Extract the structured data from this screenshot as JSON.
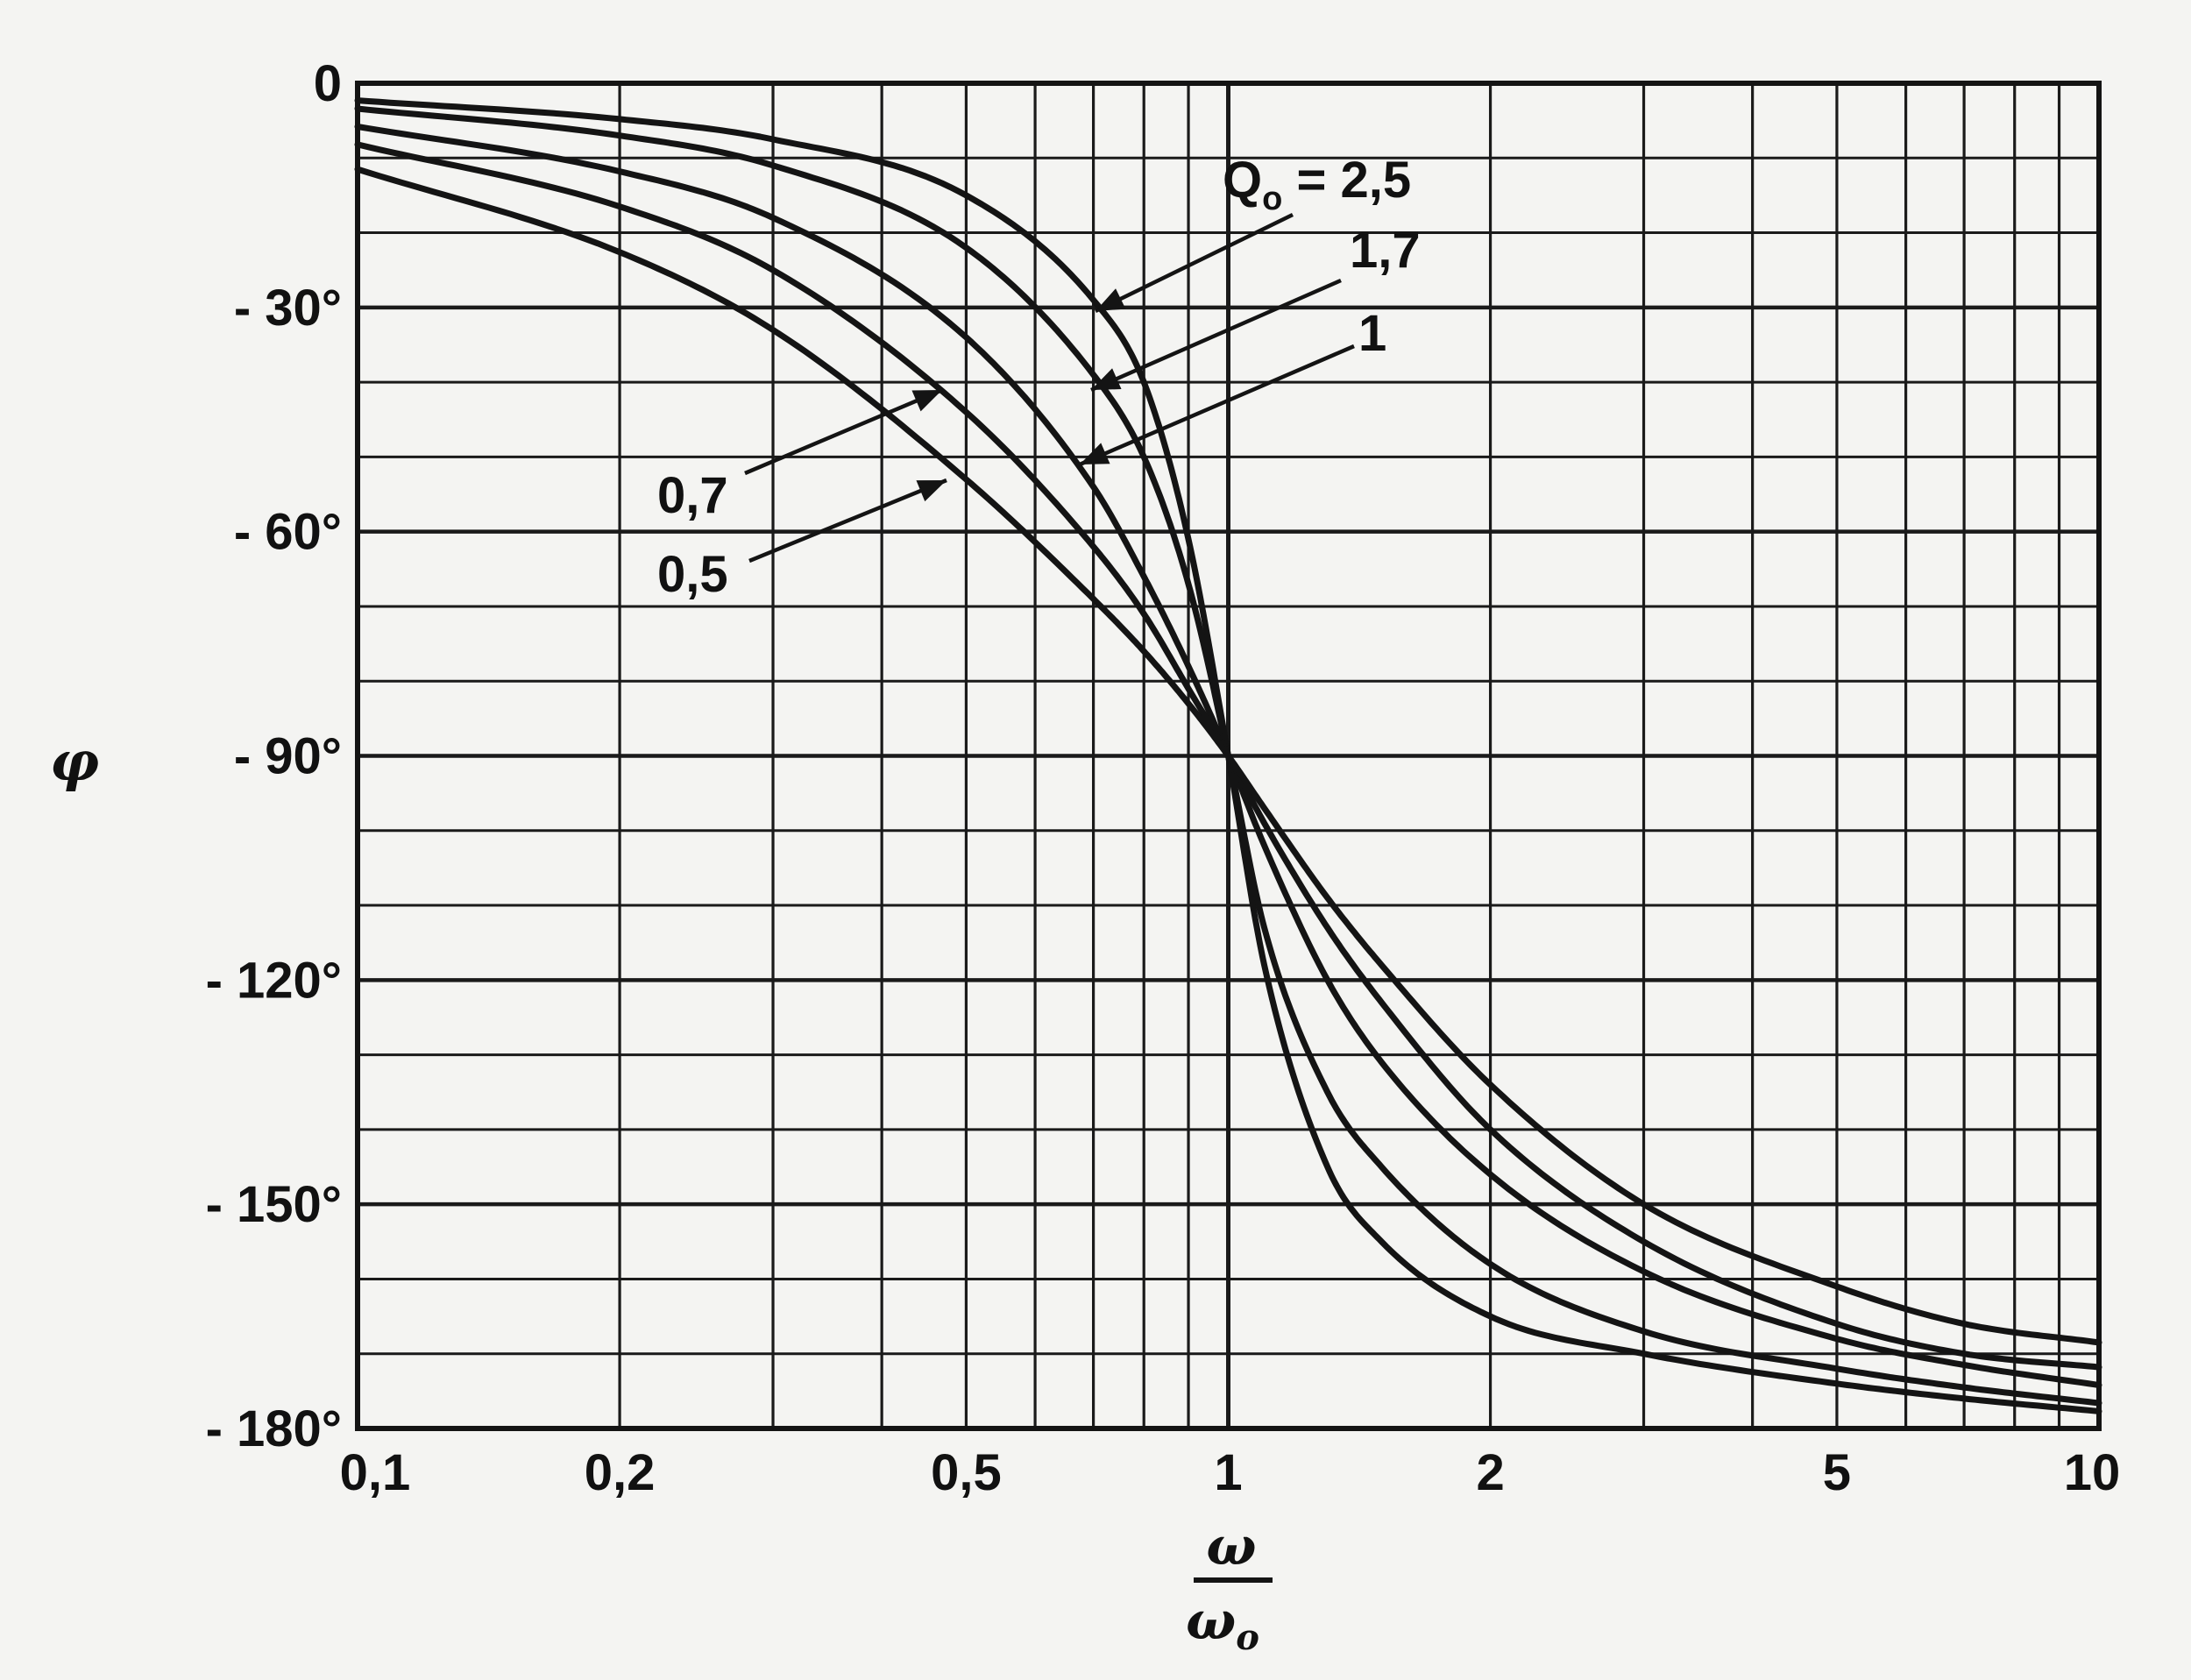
{
  "chart_data": {
    "type": "line",
    "title": "",
    "xscale": "log",
    "xlim": [
      0.1,
      10
    ],
    "ylim": [
      -180,
      0
    ],
    "grid": true,
    "legend": "none",
    "xlabel": {
      "numerator": "ω",
      "denominator": "ω",
      "denominator_subscript": "o"
    },
    "ylabel": "φ",
    "x_ticks": [
      {
        "value": 0.1,
        "label": "0,1"
      },
      {
        "value": 0.2,
        "label": "0,2"
      },
      {
        "value": 0.5,
        "label": "0,5"
      },
      {
        "value": 1,
        "label": "1"
      },
      {
        "value": 2,
        "label": "2"
      },
      {
        "value": 5,
        "label": "5"
      },
      {
        "value": 10,
        "label": "10"
      }
    ],
    "y_ticks": [
      {
        "value": 0,
        "label": "0"
      },
      {
        "value": -30,
        "label": "- 30°"
      },
      {
        "value": -60,
        "label": "- 60°"
      },
      {
        "value": -90,
        "label": "- 90°"
      },
      {
        "value": -120,
        "label": "- 120°"
      },
      {
        "value": -150,
        "label": "- 150°"
      },
      {
        "value": -180,
        "label": "- 180°"
      }
    ],
    "series": [
      {
        "name": "2,5",
        "q0": 2.5,
        "x": [
          0.1,
          0.2,
          0.3,
          0.5,
          0.7,
          0.8,
          0.9,
          1.0,
          1.1,
          1.3,
          1.5,
          2,
          3,
          5,
          7,
          10
        ],
        "y": [
          -2.3,
          -4.8,
          -7.5,
          -15,
          -29,
          -40,
          -61,
          -90,
          -118,
          -145,
          -155,
          -165,
          -170,
          -174,
          -176,
          -177.7
        ]
      },
      {
        "name": "1,7",
        "q0": 1.7,
        "x": [
          0.1,
          0.2,
          0.3,
          0.5,
          0.7,
          0.8,
          0.9,
          1.0,
          1.1,
          1.3,
          1.5,
          2,
          3,
          5,
          7,
          10
        ],
        "y": [
          -3.4,
          -7.0,
          -11,
          -22,
          -39,
          -50,
          -67,
          -90,
          -113,
          -135,
          -145,
          -158,
          -167,
          -172,
          -174.5,
          -176.6
        ]
      },
      {
        "name": "1",
        "q0": 1,
        "x": [
          0.1,
          0.2,
          0.3,
          0.5,
          0.7,
          0.8,
          0.9,
          1.0,
          1.1,
          1.3,
          1.5,
          2,
          3,
          5,
          7,
          10
        ],
        "y": [
          -5.8,
          -11.8,
          -18,
          -34,
          -54,
          -66,
          -78,
          -90,
          -102,
          -120,
          -131,
          -146,
          -159,
          -168,
          -171.5,
          -174.2
        ]
      },
      {
        "name": "0,7",
        "q0": 0.7,
        "x": [
          0.1,
          0.2,
          0.3,
          0.5,
          0.7,
          0.8,
          0.9,
          1.0,
          1.1,
          1.3,
          1.5,
          2,
          3,
          5,
          7,
          10
        ],
        "y": [
          -8.2,
          -16.5,
          -25,
          -44,
          -62,
          -71,
          -81,
          -90,
          -99,
          -113,
          -123,
          -140,
          -155,
          -166,
          -170,
          -171.8
        ]
      },
      {
        "name": "0,5",
        "q0": 0.5,
        "x": [
          0.1,
          0.2,
          0.3,
          0.5,
          0.7,
          0.8,
          0.9,
          1.0,
          1.1,
          1.3,
          1.5,
          2,
          3,
          5,
          7,
          10
        ],
        "y": [
          -11.5,
          -22.6,
          -33,
          -53,
          -69,
          -76,
          -83,
          -90,
          -97,
          -109,
          -118,
          -134,
          -150,
          -161,
          -166,
          -168.5
        ]
      }
    ],
    "annotations": [
      {
        "target": "2,5",
        "prefix": "Q",
        "prefix_subscript": "o",
        "text": " = 2,5"
      },
      {
        "target": "1,7",
        "text": "1,7"
      },
      {
        "target": "1",
        "text": "1"
      },
      {
        "target": "0,7",
        "text": "0,7"
      },
      {
        "target": "0,5",
        "text": "0,5"
      }
    ]
  },
  "colors": {
    "ink": "#141414",
    "grid": "#1a1a1a",
    "paper": "#f4f4f2"
  }
}
